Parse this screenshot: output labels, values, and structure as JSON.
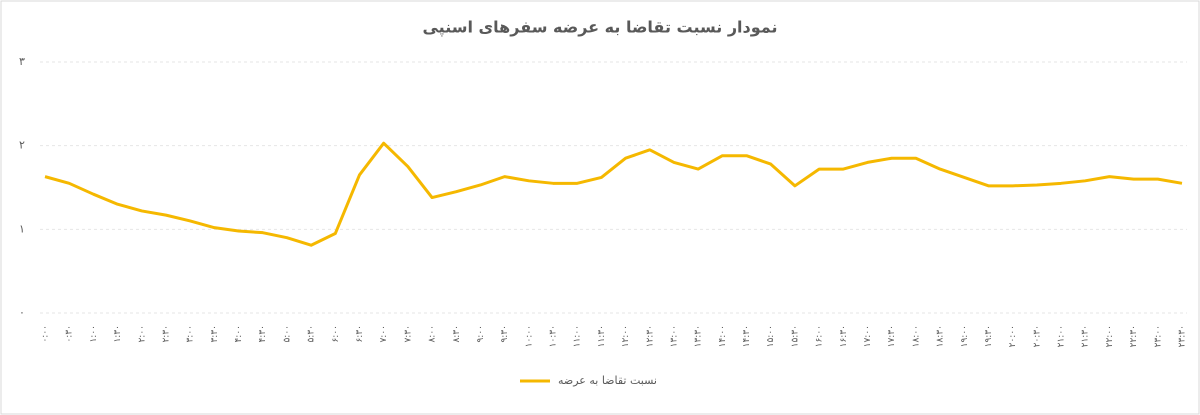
{
  "chart_data": {
    "type": "line",
    "title": "نمودار نسبت تقاضا به عرضه سفرهای اسنپی",
    "categories": [
      "۰:۰۰",
      "۰:۳۰",
      "۱:۰۰",
      "۱:۳۰",
      "۲:۰۰",
      "۲:۳۰",
      "۳:۰۰",
      "۳:۳۰",
      "۴:۰۰",
      "۴:۳۰",
      "۵:۰۰",
      "۵:۳۰",
      "۶:۰۰",
      "۶:۳۰",
      "۷:۰۰",
      "۷:۳۰",
      "۸:۰۰",
      "۸:۳۰",
      "۹:۰۰",
      "۹:۳۰",
      "۱۰:۰۰",
      "۱۰:۳۰",
      "۱۱:۰۰",
      "۱۱:۳۰",
      "۱۲:۰۰",
      "۱۲:۳۰",
      "۱۳:۰۰",
      "۱۳:۳۰",
      "۱۴:۰۰",
      "۱۴:۳۰",
      "۱۵:۰۰",
      "۱۵:۳۰",
      "۱۶:۰۰",
      "۱۶:۳۰",
      "۱۷:۰۰",
      "۱۷:۳۰",
      "۱۸:۰۰",
      "۱۸:۳۰",
      "۱۹:۰۰",
      "۱۹:۳۰",
      "۲۰:۰۰",
      "۲۰:۳۰",
      "۲۱:۰۰",
      "۲۱:۳۰",
      "۲۲:۰۰",
      "۲۲:۳۰",
      "۲۳:۰۰",
      "۲۳:۳۰"
    ],
    "series": [
      {
        "name": "نسبت تقاضا به عرضه",
        "color": "#f5b800",
        "values": [
          1.63,
          1.55,
          1.42,
          1.3,
          1.22,
          1.17,
          1.1,
          1.02,
          0.98,
          0.96,
          0.9,
          0.81,
          0.95,
          1.65,
          2.03,
          1.75,
          1.38,
          1.45,
          1.53,
          1.63,
          1.58,
          1.55,
          1.55,
          1.62,
          1.85,
          1.95,
          1.8,
          1.72,
          1.88,
          1.88,
          1.78,
          1.52,
          1.72,
          1.72,
          1.8,
          1.85,
          1.85,
          1.72,
          1.62,
          1.52,
          1.52,
          1.53,
          1.55,
          1.58,
          1.63,
          1.6,
          1.6,
          1.55
        ]
      }
    ],
    "ylim": [
      0,
      3
    ],
    "yticks": [
      {
        "value": 0,
        "label": "۰"
      },
      {
        "value": 1,
        "label": "۱"
      },
      {
        "value": 2,
        "label": "۲"
      },
      {
        "value": 3,
        "label": "۳"
      }
    ],
    "grid": true
  }
}
